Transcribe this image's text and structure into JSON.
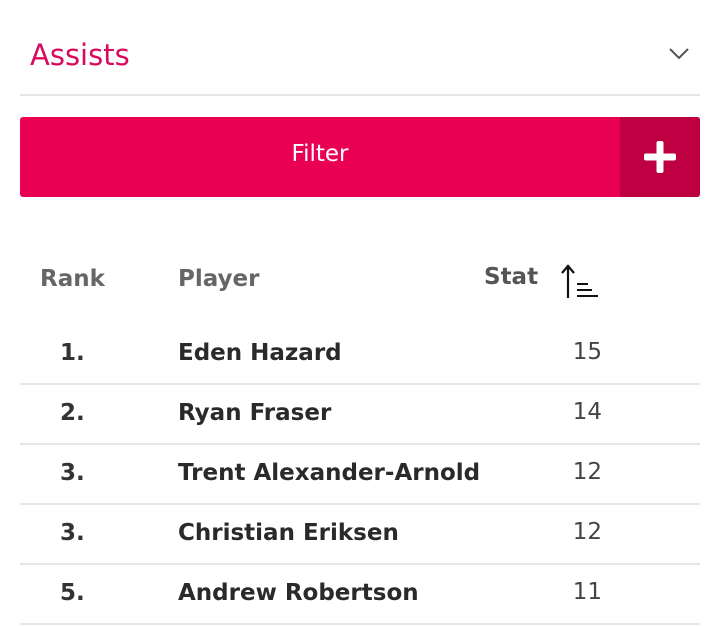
{
  "dropdown": {
    "label": "Assists"
  },
  "filter": {
    "label": "Filter"
  },
  "table": {
    "headers": {
      "rank": "Rank",
      "player": "Player",
      "stat": "Stat"
    },
    "rows": [
      {
        "rank": "1.",
        "player": "Eden Hazard",
        "stat": "15"
      },
      {
        "rank": "2.",
        "player": "Ryan Fraser",
        "stat": "14"
      },
      {
        "rank": "3.",
        "player": "Trent Alexander-Arnold",
        "stat": "12"
      },
      {
        "rank": "3.",
        "player": "Christian Eriksen",
        "stat": "12"
      },
      {
        "rank": "5.",
        "player": "Andrew Robertson",
        "stat": "11"
      }
    ]
  },
  "colors": {
    "accent": "#e90052",
    "accent_dark": "#be0043",
    "label": "#d90a5e"
  },
  "icons": {
    "dropdown": "chevron-down-icon",
    "add": "plus-icon",
    "sort": "sort-ascending-icon"
  }
}
